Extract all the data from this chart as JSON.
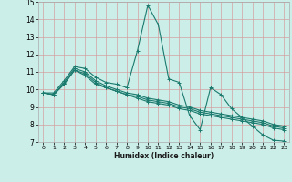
{
  "xlabel": "Humidex (Indice chaleur)",
  "bg_color": "#cceee8",
  "grid_color": "#b8d8d4",
  "line_color": "#1a7a6e",
  "xlim": [
    -0.5,
    23.5
  ],
  "ylim": [
    7,
    15
  ],
  "xticks": [
    0,
    1,
    2,
    3,
    4,
    5,
    6,
    7,
    8,
    9,
    10,
    11,
    12,
    13,
    14,
    15,
    16,
    17,
    18,
    19,
    20,
    21,
    22,
    23
  ],
  "yticks": [
    7,
    8,
    9,
    10,
    11,
    12,
    13,
    14,
    15
  ],
  "series": [
    {
      "x": [
        0,
        1,
        2,
        3,
        4,
        5,
        6,
        7,
        8,
        9,
        10,
        11,
        12,
        13,
        14,
        15,
        16,
        17,
        18,
        19,
        20,
        21,
        22,
        23
      ],
      "y": [
        9.8,
        9.8,
        10.5,
        11.3,
        11.2,
        10.7,
        10.4,
        10.3,
        10.1,
        12.2,
        14.8,
        13.7,
        10.6,
        10.4,
        8.5,
        7.7,
        10.1,
        9.7,
        8.9,
        8.4,
        7.9,
        7.4,
        7.1,
        7.05
      ]
    },
    {
      "x": [
        0,
        1,
        2,
        3,
        4,
        5,
        6,
        7,
        8,
        9,
        10,
        11,
        12,
        13,
        14,
        15,
        16,
        17,
        18,
        19,
        20,
        21,
        22,
        23
      ],
      "y": [
        9.8,
        9.7,
        10.4,
        11.2,
        11.0,
        10.5,
        10.2,
        10.0,
        9.8,
        9.7,
        9.5,
        9.4,
        9.3,
        9.1,
        9.0,
        8.8,
        8.7,
        8.6,
        8.5,
        8.4,
        8.3,
        8.2,
        8.0,
        7.9
      ]
    },
    {
      "x": [
        0,
        1,
        2,
        3,
        4,
        5,
        6,
        7,
        8,
        9,
        10,
        11,
        12,
        13,
        14,
        15,
        16,
        17,
        18,
        19,
        20,
        21,
        22,
        23
      ],
      "y": [
        9.8,
        9.7,
        10.3,
        11.1,
        10.9,
        10.4,
        10.1,
        9.9,
        9.7,
        9.6,
        9.4,
        9.3,
        9.2,
        9.0,
        8.9,
        8.7,
        8.6,
        8.5,
        8.4,
        8.3,
        8.2,
        8.1,
        7.9,
        7.8
      ]
    },
    {
      "x": [
        0,
        1,
        2,
        3,
        4,
        5,
        6,
        7,
        8,
        9,
        10,
        11,
        12,
        13,
        14,
        15,
        16,
        17,
        18,
        19,
        20,
        21,
        22,
        23
      ],
      "y": [
        9.8,
        9.7,
        10.3,
        11.1,
        10.8,
        10.3,
        10.1,
        9.9,
        9.7,
        9.5,
        9.3,
        9.2,
        9.1,
        8.9,
        8.8,
        8.6,
        8.5,
        8.4,
        8.3,
        8.2,
        8.1,
        8.0,
        7.8,
        7.7
      ]
    }
  ]
}
